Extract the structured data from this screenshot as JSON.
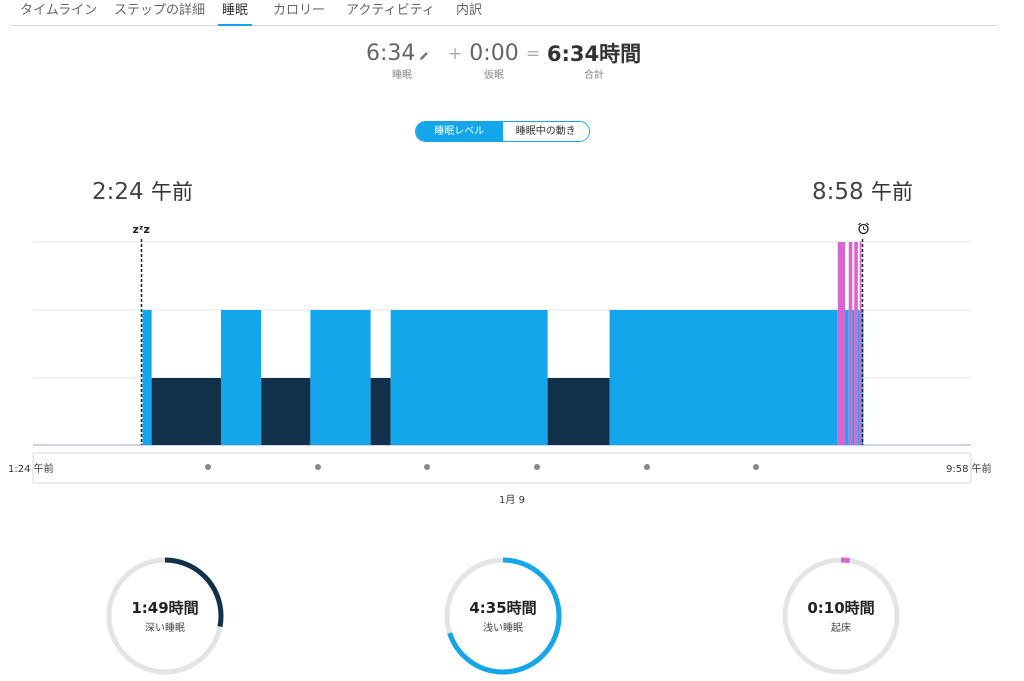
{
  "tabs": [
    {
      "label": "タイムライン",
      "active": false
    },
    {
      "label": "ステップの詳細",
      "active": false
    },
    {
      "label": "睡眠",
      "active": true
    },
    {
      "label": "カロリー",
      "active": false
    },
    {
      "label": "アクティビティ",
      "active": false
    },
    {
      "label": "内訳",
      "active": false
    }
  ],
  "summary": {
    "sleep_value": "6:34",
    "sleep_label": "睡眠",
    "plus": "+",
    "nap_value": "0:00",
    "nap_label": "仮眠",
    "equals": "=",
    "total_value": "6:34時間",
    "total_label": "合計"
  },
  "toggle": {
    "levels": "睡眠レベル",
    "movement": "睡眠中の動き"
  },
  "chart": {
    "start_time": "2:24",
    "end_time": "8:58",
    "ampm": "午前",
    "sleep_marker": "zᶻz",
    "axis_start": "1:24 午前",
    "axis_end": "9:58 午前",
    "date": "1月 9",
    "colors": {
      "deep": "#11314a",
      "light": "#14a6ea",
      "awake": "#d566cf",
      "grid": "#e6e6e6"
    }
  },
  "chart_data": {
    "type": "bar",
    "x_unit": "minutes after 1:24 AM",
    "x_range": [
      0,
      514
    ],
    "levels": [
      "deep",
      "light",
      "awake"
    ],
    "segments": [
      {
        "level": "light",
        "start": 60,
        "end": 65
      },
      {
        "level": "deep",
        "start": 65,
        "end": 103
      },
      {
        "level": "light",
        "start": 103,
        "end": 125
      },
      {
        "level": "deep",
        "start": 125,
        "end": 152
      },
      {
        "level": "light",
        "start": 152,
        "end": 185
      },
      {
        "level": "deep",
        "start": 185,
        "end": 196
      },
      {
        "level": "light",
        "start": 196,
        "end": 282
      },
      {
        "level": "deep",
        "start": 282,
        "end": 316
      },
      {
        "level": "light",
        "start": 316,
        "end": 441
      },
      {
        "level": "awake",
        "start": 441,
        "end": 445
      },
      {
        "level": "light",
        "start": 445,
        "end": 447
      },
      {
        "level": "awake",
        "start": 447,
        "end": 449
      },
      {
        "level": "light",
        "start": 449,
        "end": 450
      },
      {
        "level": "awake",
        "start": 450,
        "end": 452
      },
      {
        "level": "light",
        "start": 452,
        "end": 453
      },
      {
        "level": "awake",
        "start": 453,
        "end": 454
      },
      {
        "level": "light",
        "start": 454,
        "end": 455
      }
    ],
    "sleep_start": 60,
    "sleep_end": 454
  },
  "rings": [
    {
      "value": "1:49時間",
      "label": "深い睡眠",
      "fraction": 0.28,
      "color": "#11314a"
    },
    {
      "value": "4:35時間",
      "label": "浅い睡眠",
      "fraction": 0.7,
      "color": "#14a6ea"
    },
    {
      "value": "0:10時間",
      "label": "起床",
      "fraction": 0.025,
      "color": "#d566cf"
    }
  ]
}
